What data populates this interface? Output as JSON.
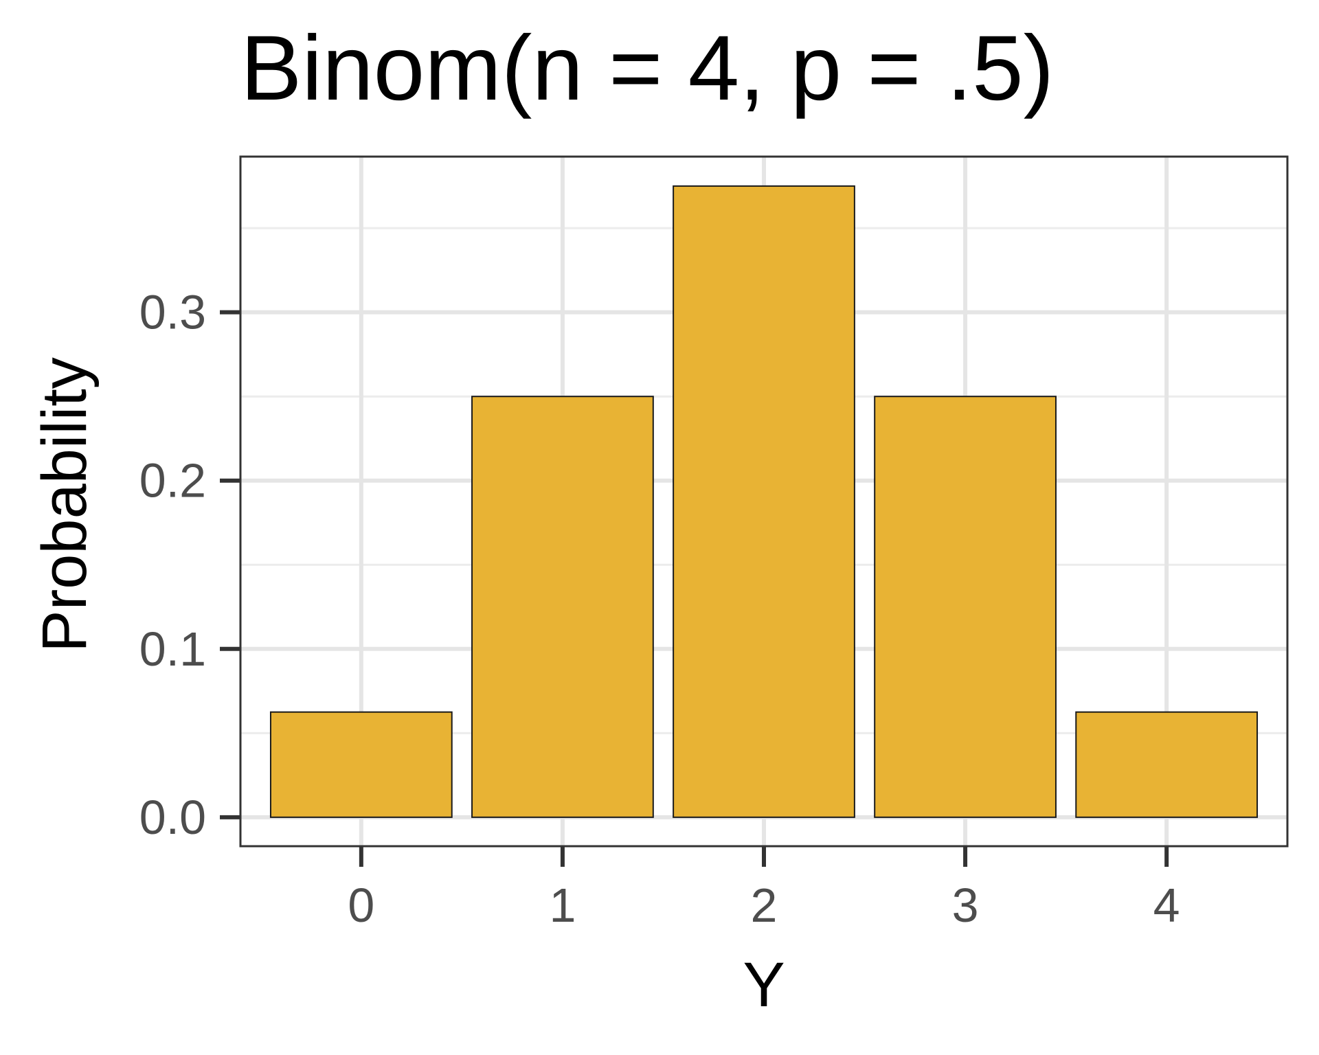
{
  "chart_data": {
    "type": "bar",
    "title": "Binom(n = 4, p = .5)",
    "xlabel": "Y",
    "ylabel": "Probability",
    "categories": [
      "0",
      "1",
      "2",
      "3",
      "4"
    ],
    "values": [
      0.0625,
      0.25,
      0.375,
      0.25,
      0.0625
    ],
    "ylim": [
      -0.0172,
      0.3925
    ],
    "yticks": [
      0.0,
      0.1,
      0.2,
      0.3
    ],
    "ytick_labels": [
      "0.0",
      "0.1",
      "0.2",
      "0.3"
    ],
    "grid": true,
    "legend": false,
    "colors": {
      "bar_fill": "#E8B334",
      "bar_stroke": "#1a1a1a",
      "grid_major": "#e5e5e5",
      "grid_minor": "#ececec",
      "panel_border": "#333333",
      "tick_text": "#4d4d4d"
    }
  }
}
